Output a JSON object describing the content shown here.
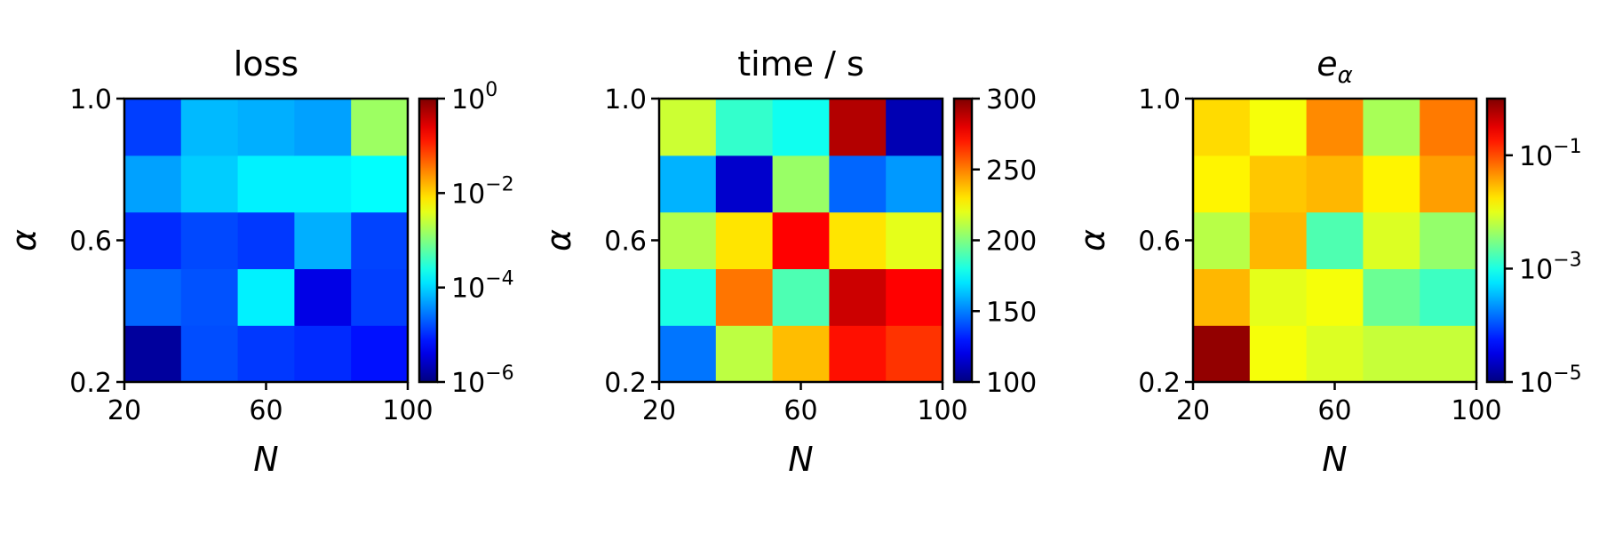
{
  "chart_data": [
    {
      "type": "heatmap",
      "title": "loss",
      "xlabel": "N",
      "ylabel": "α",
      "x_ticks": [
        "20",
        "60",
        "100"
      ],
      "y_ticks": [
        "0.2",
        "0.6",
        "1.0"
      ],
      "x": [
        20,
        40,
        60,
        80,
        100
      ],
      "y": [
        0.2,
        0.4,
        0.6,
        0.8,
        1.0
      ],
      "colormap": "jet",
      "color_scale": "log",
      "color_range": [
        1e-06,
        1
      ],
      "colorbar_ticks": [
        {
          "value": 1,
          "base": "10",
          "exp": "0"
        },
        {
          "value": 0.01,
          "base": "10",
          "exp": "−2"
        },
        {
          "value": 0.0001,
          "base": "10",
          "exp": "−4"
        },
        {
          "value": 1e-06,
          "base": "10",
          "exp": "−6"
        }
      ],
      "values": [
        [
          1.5e-06,
          1.6e-05,
          1.2e-05,
          1e-05,
          7e-06
        ],
        [
          2.2e-05,
          1.7e-05,
          0.00015,
          4e-06,
          1.3e-05
        ],
        [
          1e-05,
          1.5e-05,
          1.2e-05,
          6e-05,
          1.4e-05
        ],
        [
          5e-05,
          9e-05,
          0.00015,
          0.00015,
          0.00018
        ],
        [
          1.3e-05,
          7e-05,
          6e-05,
          5e-05,
          0.0015
        ]
      ]
    },
    {
      "type": "heatmap",
      "title": "time / s",
      "xlabel": "N",
      "ylabel": "α",
      "x_ticks": [
        "20",
        "60",
        "100"
      ],
      "y_ticks": [
        "0.2",
        "0.6",
        "1.0"
      ],
      "x": [
        20,
        40,
        60,
        80,
        100
      ],
      "y": [
        0.2,
        0.4,
        0.6,
        0.8,
        1.0
      ],
      "colormap": "jet",
      "color_scale": "linear",
      "color_range": [
        100,
        300
      ],
      "colorbar_ticks": [
        {
          "value": 300,
          "label": "300"
        },
        {
          "value": 250,
          "label": "250"
        },
        {
          "value": 200,
          "label": "200"
        },
        {
          "value": 150,
          "label": "150"
        },
        {
          "value": 100,
          "label": "100"
        }
      ],
      "values": [
        [
          148,
          212,
          238,
          272,
          265
        ],
        [
          180,
          252,
          190,
          285,
          275
        ],
        [
          210,
          230,
          275,
          230,
          220
        ],
        [
          160,
          115,
          205,
          145,
          155
        ],
        [
          215,
          185,
          178,
          290,
          110
        ]
      ]
    },
    {
      "type": "heatmap",
      "title": "e",
      "title_subscript": "α",
      "xlabel": "N",
      "ylabel": "α",
      "x_ticks": [
        "20",
        "60",
        "100"
      ],
      "y_ticks": [
        "0.2",
        "0.6",
        "1.0"
      ],
      "x": [
        20,
        40,
        60,
        80,
        100
      ],
      "y": [
        0.2,
        0.4,
        0.6,
        0.8,
        1.0
      ],
      "colormap": "jet",
      "color_scale": "log",
      "color_range": [
        1e-05,
        1
      ],
      "colorbar_ticks": [
        {
          "value": 0.1,
          "base": "10",
          "exp": "−1"
        },
        {
          "value": 0.001,
          "base": "10",
          "exp": "−3"
        },
        {
          "value": 1e-05,
          "base": "10",
          "exp": "−5"
        }
      ],
      "values": [
        [
          0.8,
          0.012,
          0.009,
          0.007,
          0.007
        ],
        [
          0.03,
          0.01,
          0.012,
          0.0025,
          0.0015
        ],
        [
          0.006,
          0.03,
          0.0018,
          0.009,
          0.004
        ],
        [
          0.015,
          0.025,
          0.03,
          0.015,
          0.04
        ],
        [
          0.02,
          0.012,
          0.05,
          0.005,
          0.06
        ]
      ]
    }
  ]
}
